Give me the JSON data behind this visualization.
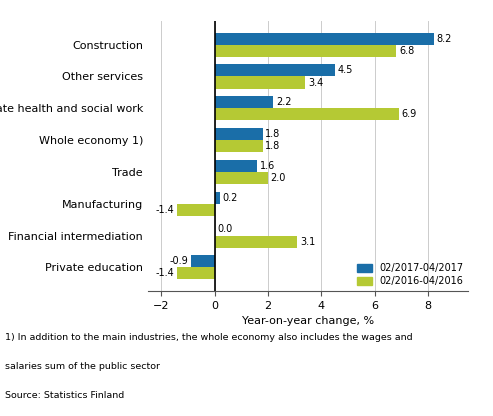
{
  "categories": [
    "Private education",
    "Financial intermediation",
    "Manufacturing",
    "Trade",
    "Whole economy 1)",
    "Private health and social work",
    "Other services",
    "Construction"
  ],
  "series_2017": [
    -0.9,
    0.0,
    0.2,
    1.6,
    1.8,
    2.2,
    4.5,
    8.2
  ],
  "series_2016": [
    -1.4,
    3.1,
    -1.4,
    2.0,
    1.8,
    6.9,
    3.4,
    6.8
  ],
  "color_2017": "#1a6ea8",
  "color_2016": "#b5c934",
  "xlabel": "Year-on-year change, %",
  "legend_2017": "02/2017-04/2017",
  "legend_2016": "02/2016-04/2016",
  "xlim": [
    -2.5,
    9.5
  ],
  "xticks": [
    -2,
    0,
    2,
    4,
    6,
    8
  ],
  "footnote1": "1) In addition to the main industries, the whole economy also includes the wages and",
  "footnote2": "salaries sum of the public sector",
  "source": "Source: Statistics Finland",
  "bar_height": 0.38
}
